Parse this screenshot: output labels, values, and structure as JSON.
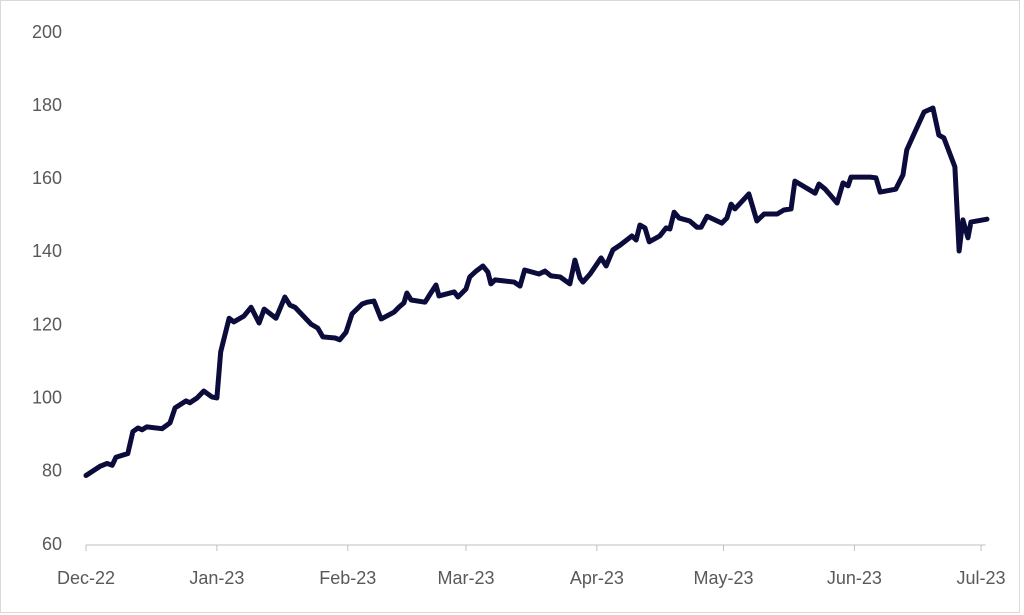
{
  "chart_data": {
    "type": "line",
    "x": [
      0,
      3.3,
      5.0,
      6.2,
      7.1,
      9.9,
      11.1,
      12.3,
      13.3,
      14.4,
      18.0,
      19.9,
      21.1,
      23.7,
      24.6,
      26.3,
      27.9,
      29.8,
      31.0,
      31.9,
      33.9,
      35.0,
      37.4,
      39.1,
      41.0,
      42.2,
      45.0,
      47.1,
      48.3,
      49.5,
      53.3,
      54.9,
      56.1,
      59.0,
      60.1,
      61.6,
      63.0,
      65.4,
      66.6,
      68.2,
      69.9,
      73.0,
      74.1,
      75.3,
      76.0,
      77.0,
      80.3,
      81.5,
      82.9,
      83.6,
      87.2,
      88.1,
      90.0,
      90.9,
      92.4,
      94.0,
      95.2,
      95.9,
      96.9,
      101.4,
      102.8,
      103.9,
      107.3,
      108.7,
      110.1,
      112.3,
      114.6,
      115.8,
      117.0,
      117.7,
      119.4,
      122.0,
      123.2,
      124.8,
      126.5,
      129.3,
      130.3,
      131.2,
      132.4,
      133.4,
      135.9,
      137.4,
      138.3,
      139.3,
      140.5,
      143.0,
      144.7,
      145.7,
      147.1,
      150.6,
      151.8,
      152.8,
      153.7,
      157.0,
      158.9,
      160.6,
      163.7,
      165.3,
      167.0,
      167.9,
      172.7,
      173.6,
      175.0,
      177.9,
      179.3,
      180.5,
      181.2,
      185.7,
      187.1,
      188.1,
      191.8,
      193.5,
      194.4,
      195.8,
      198.5,
      200.6,
      202.0,
      203.2,
      205.8,
      206.8,
      207.7,
      208.9,
      209.6,
      213.4
    ],
    "series": [
      {
        "color": "#0c0c3c",
        "values": [
          79,
          81.5,
          82.3,
          81.8,
          84,
          85,
          91,
          92,
          91.5,
          92.3,
          91.8,
          93.4,
          97.5,
          99.4,
          98.9,
          100.2,
          102.1,
          100.5,
          100.2,
          112.8,
          122,
          121,
          122.6,
          125,
          120.7,
          124.5,
          122,
          127.8,
          125.6,
          125,
          120.4,
          119.3,
          116.9,
          116.6,
          116.1,
          118.2,
          123.2,
          125.9,
          126.4,
          126.7,
          121.8,
          123.7,
          125,
          126.2,
          128.9,
          127,
          126.4,
          128.6,
          131.1,
          128.1,
          129.2,
          127.8,
          130,
          133.3,
          134.9,
          136.3,
          134.6,
          131.4,
          132.5,
          131.9,
          130.8,
          135.2,
          134.1,
          134.9,
          133.6,
          133.3,
          131.4,
          137.9,
          133,
          131.9,
          134.1,
          138.5,
          136.3,
          140.7,
          142,
          144.5,
          143.4,
          147.5,
          146.7,
          142.9,
          144.5,
          146.7,
          146.4,
          151,
          149.4,
          148.6,
          146.9,
          146.9,
          149.9,
          148,
          149.4,
          153.2,
          151.9,
          156,
          148.6,
          150.5,
          150.5,
          151.6,
          151.9,
          159.5,
          156.2,
          158.7,
          157.4,
          153.5,
          159,
          158.2,
          160.6,
          160.6,
          160.4,
          156.5,
          157.3,
          161.2,
          168,
          171.6,
          178.4,
          179.5,
          172.1,
          171.3,
          163.4,
          140.4,
          148.9,
          144,
          148.3,
          149.1
        ]
      }
    ],
    "xlim": [
      0,
      214
    ],
    "xticks": [
      {
        "value": 0,
        "label": "Dec-22"
      },
      {
        "value": 31,
        "label": "Jan-23"
      },
      {
        "value": 62,
        "label": "Feb-23"
      },
      {
        "value": 90,
        "label": "Mar-23"
      },
      {
        "value": 121,
        "label": "Apr-23"
      },
      {
        "value": 151,
        "label": "May-23"
      },
      {
        "value": 182,
        "label": "Jun-23"
      },
      {
        "value": 212,
        "label": "Jul-23"
      }
    ],
    "ylim": [
      60,
      200
    ],
    "yticks": [
      60,
      80,
      100,
      120,
      140,
      160,
      180,
      200
    ],
    "grid": false
  }
}
